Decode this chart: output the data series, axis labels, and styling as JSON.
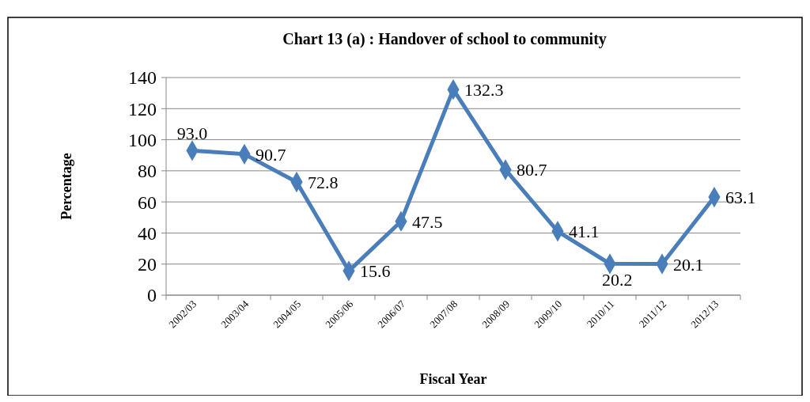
{
  "chart_data": {
    "type": "line",
    "title": "Chart 13 (a) : Handover of school to community",
    "xlabel": "Fiscal Year",
    "ylabel": "Percentage",
    "categories": [
      "2002/03",
      "2003/04",
      "2004/05",
      "2005/06",
      "2006/07",
      "2007/08",
      "2008/09",
      "2009/10",
      "2010/11",
      "2011/12",
      "2012/13"
    ],
    "series": [
      {
        "color": "#4a7ebb",
        "values": [
          93.0,
          90.7,
          72.8,
          15.6,
          47.5,
          132.3,
          80.7,
          41.1,
          20.2,
          20.1,
          63.1
        ],
        "value_labels": [
          "93.0",
          "90.7",
          "72.8",
          "15.6",
          "47.5",
          "132.3",
          "80.7",
          "41.1",
          "20.2",
          "20.1",
          "63.1"
        ]
      }
    ],
    "ylim": [
      0,
      140
    ],
    "yticks": [
      0,
      20,
      40,
      60,
      80,
      100,
      120,
      140
    ],
    "grid": "y",
    "marker": "diamond",
    "line_style": "solid"
  }
}
